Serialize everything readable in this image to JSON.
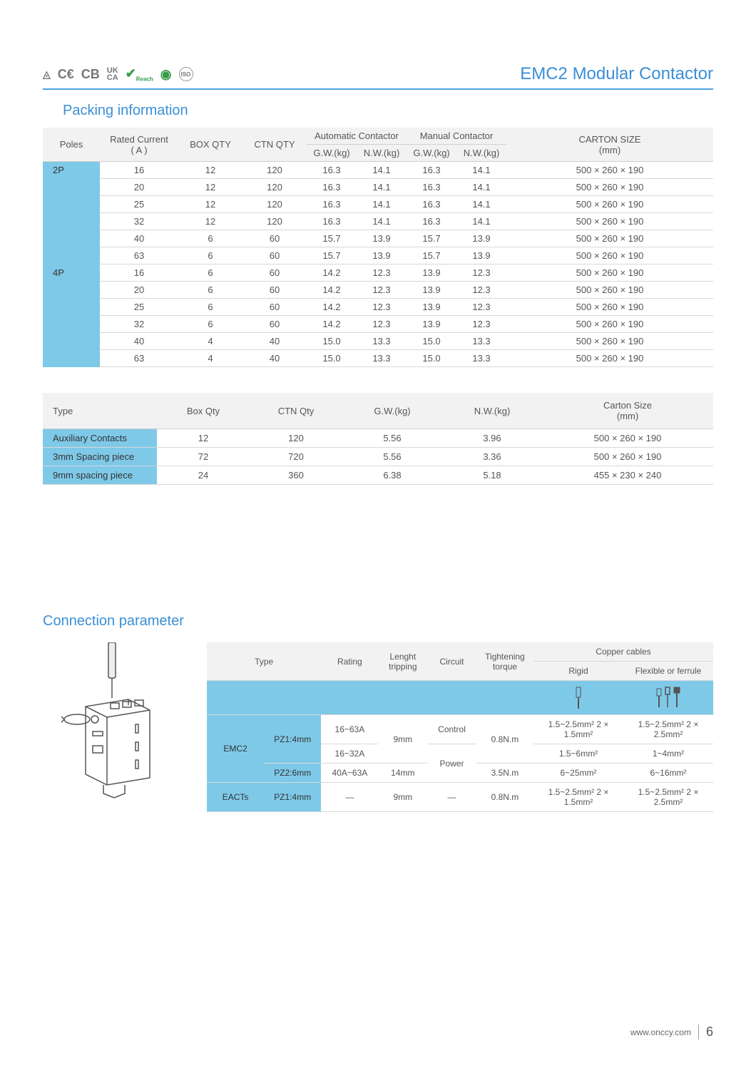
{
  "header": {
    "product_title": "EMC2 Modular Contactor",
    "cert_labels": [
      "◬",
      "CE",
      "CB",
      "UKCA",
      "✔",
      "◎",
      "⊚"
    ]
  },
  "section1_title": "Packing information",
  "packing": {
    "headers": {
      "poles": "Poles",
      "rated_current": "Rated Current",
      "rated_current_unit": "( A )",
      "box_qty": "BOX QTY",
      "ctn_qty": "CTN QTY",
      "auto_contactor": "Automatic Contactor",
      "manual_contactor": "Manual Contactor",
      "gw": "G.W.(kg)",
      "nw": "N.W.(kg)",
      "carton_size": "CARTON SIZE",
      "carton_unit": "(mm)"
    },
    "groups": [
      {
        "poles": "2P",
        "rows": [
          {
            "a": "16",
            "box": "12",
            "ctn": "120",
            "agw": "16.3",
            "anw": "14.1",
            "mgw": "16.3",
            "mnw": "14.1",
            "size": "500 × 260  × 190"
          },
          {
            "a": "20",
            "box": "12",
            "ctn": "120",
            "agw": "16.3",
            "anw": "14.1",
            "mgw": "16.3",
            "mnw": "14.1",
            "size": "500 × 260  × 190"
          },
          {
            "a": "25",
            "box": "12",
            "ctn": "120",
            "agw": "16.3",
            "anw": "14.1",
            "mgw": "16.3",
            "mnw": "14.1",
            "size": "500 × 260  × 190"
          },
          {
            "a": "32",
            "box": "12",
            "ctn": "120",
            "agw": "16.3",
            "anw": "14.1",
            "mgw": "16.3",
            "mnw": "14.1",
            "size": "500 × 260  × 190"
          },
          {
            "a": "40",
            "box": "6",
            "ctn": "60",
            "agw": "15.7",
            "anw": "13.9",
            "mgw": "15.7",
            "mnw": "13.9",
            "size": "500 × 260  × 190"
          },
          {
            "a": "63",
            "box": "6",
            "ctn": "60",
            "agw": "15.7",
            "anw": "13.9",
            "mgw": "15.7",
            "mnw": "13.9",
            "size": "500 × 260  × 190"
          }
        ]
      },
      {
        "poles": "4P",
        "rows": [
          {
            "a": "16",
            "box": "6",
            "ctn": "60",
            "agw": "14.2",
            "anw": "12.3",
            "mgw": "13.9",
            "mnw": "12.3",
            "size": "500 × 260  × 190"
          },
          {
            "a": "20",
            "box": "6",
            "ctn": "60",
            "agw": "14.2",
            "anw": "12.3",
            "mgw": "13.9",
            "mnw": "12.3",
            "size": "500 × 260  × 190"
          },
          {
            "a": "25",
            "box": "6",
            "ctn": "60",
            "agw": "14.2",
            "anw": "12.3",
            "mgw": "13.9",
            "mnw": "12.3",
            "size": "500 × 260  × 190"
          },
          {
            "a": "32",
            "box": "6",
            "ctn": "60",
            "agw": "14.2",
            "anw": "12.3",
            "mgw": "13.9",
            "mnw": "12.3",
            "size": "500 × 260  × 190"
          },
          {
            "a": "40",
            "box": "4",
            "ctn": "40",
            "agw": "15.0",
            "anw": "13.3",
            "mgw": "15.0",
            "mnw": "13.3",
            "size": "500 × 260  × 190"
          },
          {
            "a": "63",
            "box": "4",
            "ctn": "40",
            "agw": "15.0",
            "anw": "13.3",
            "mgw": "15.0",
            "mnw": "13.3",
            "size": "500 × 260  × 190"
          }
        ]
      }
    ]
  },
  "accessories": {
    "headers": {
      "type": "Type",
      "box_qty": "Box Qty",
      "ctn_qty": "CTN Qty",
      "gw": "G.W.(kg)",
      "nw": "N.W.(kg)",
      "carton_size": "Carton Size",
      "carton_unit": "(mm)"
    },
    "rows": [
      {
        "type": "Auxiliary Contacts",
        "box": "12",
        "ctn": "120",
        "gw": "5.56",
        "nw": "3.96",
        "size": "500 × 260 × 190"
      },
      {
        "type": "3mm Spacing piece",
        "box": "72",
        "ctn": "720",
        "gw": "5.56",
        "nw": "3.36",
        "size": "500 × 260 × 190"
      },
      {
        "type": "9mm spacing piece",
        "box": "24",
        "ctn": "360",
        "gw": "6.38",
        "nw": "5.18",
        "size": "455 × 230 × 240"
      }
    ]
  },
  "section2_title": "Connection parameter",
  "connection": {
    "headers": {
      "type": "Type",
      "rating": "Rating",
      "length_tripping": "Lenght tripping",
      "circuit": "Circuit",
      "torque": "Tightening torque",
      "copper": "Copper cables",
      "rigid": "Rigid",
      "flexible": "Flexible or ferrule"
    },
    "rows": [
      {
        "model": "EMC2",
        "tool": "PZ1:4mm",
        "rating": "16~63A",
        "length": "9mm",
        "circuit": "Control",
        "torque": "0.8N.m",
        "rigid": "1.5~2.5mm² 2 × 1.5mm²",
        "flex": "1.5~2.5mm² 2 × 2.5mm²"
      },
      {
        "model": "",
        "tool": "",
        "rating": "16~32A",
        "length": "",
        "circuit": "Power",
        "torque": "",
        "rigid": "1.5~6mm²",
        "flex": "1~4mm²"
      },
      {
        "model": "",
        "tool": "PZ2:6mm",
        "rating": "40A~63A",
        "length": "14mm",
        "circuit": "",
        "torque": "3.5N.m",
        "rigid": "6~25mm²",
        "flex": "6~16mm²"
      },
      {
        "model": "EACTs",
        "tool": "PZ1:4mm",
        "rating": "—",
        "length": "9mm",
        "circuit": "—",
        "torque": "0.8N.m",
        "rigid": "1.5~2.5mm² 2 × 1.5mm²",
        "flex": "1.5~2.5mm² 2 × 2.5mm²"
      }
    ]
  },
  "footer": {
    "url": "www.onccy.com",
    "page": "6"
  },
  "colors": {
    "accent": "#3a8fd6",
    "highlight_bg": "#7fc9e8",
    "header_bg": "#f2f2f2",
    "border": "#d8d8d8",
    "text": "#555555"
  }
}
